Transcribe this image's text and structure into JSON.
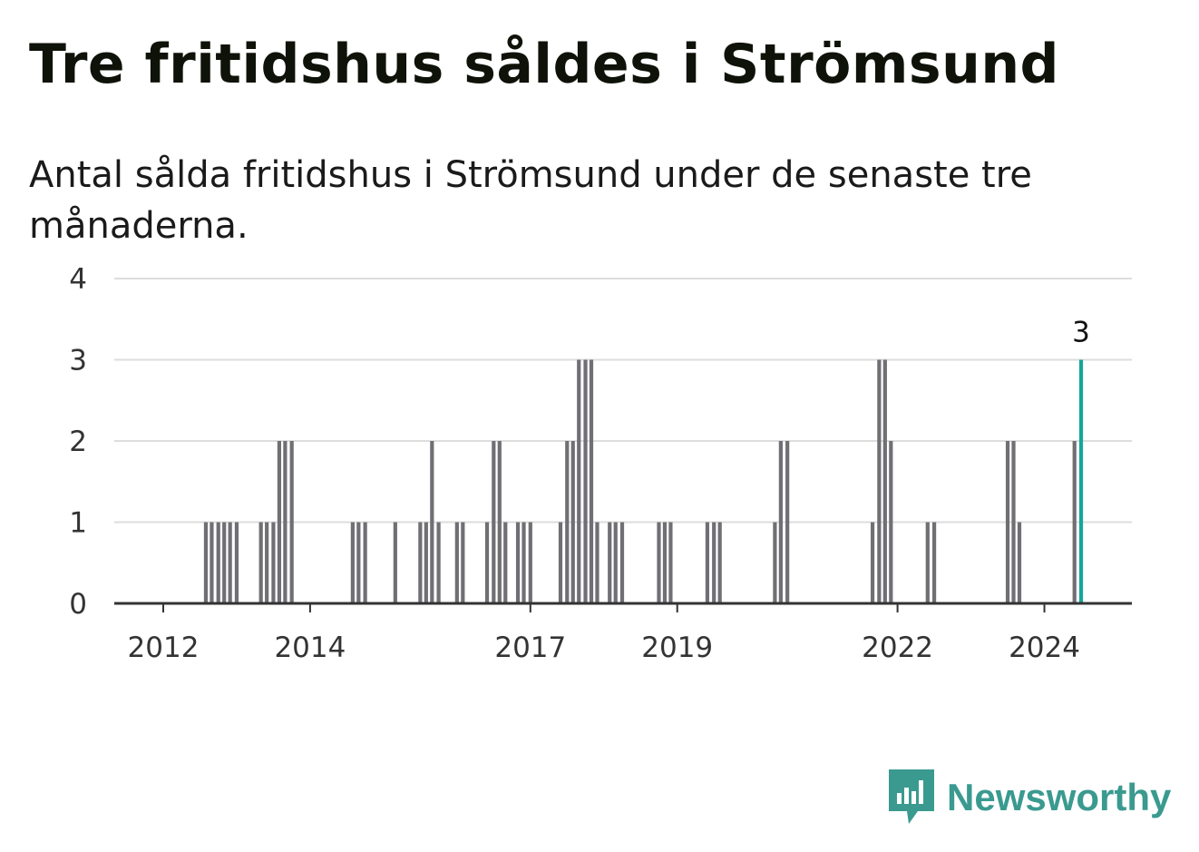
{
  "title": "Tre fritidshus såldes i Strömsund",
  "subtitle": "Antal sålda fritidshus i Strömsund under de senaste tre månaderna.",
  "brand": {
    "name": "Newsworthy",
    "icon": "newsworthy-logo-icon",
    "color": "#3a9a90"
  },
  "colors": {
    "bar": "#6f6f74",
    "highlight": "#17a59a",
    "grid": "#dddddd",
    "axis": "#333333"
  },
  "chart_data": {
    "type": "bar",
    "title": "Tre fritidshus såldes i Strömsund",
    "xlabel": "",
    "ylabel": "",
    "ylim": [
      0,
      4
    ],
    "yticks": [
      0,
      1,
      2,
      3,
      4
    ],
    "xticks": [
      2012,
      2014,
      2017,
      2019,
      2022,
      2024
    ],
    "grid": true,
    "x": [
      2012.58,
      2012.66,
      2012.75,
      2012.83,
      2012.91,
      2013.0,
      2013.33,
      2013.41,
      2013.5,
      2013.58,
      2013.66,
      2013.75,
      2014.58,
      2014.66,
      2014.75,
      2015.16,
      2015.5,
      2015.58,
      2015.66,
      2015.75,
      2016.0,
      2016.08,
      2016.41,
      2016.5,
      2016.58,
      2016.66,
      2016.83,
      2016.91,
      2017.0,
      2017.41,
      2017.5,
      2017.58,
      2017.66,
      2017.75,
      2017.83,
      2017.91,
      2018.08,
      2018.16,
      2018.25,
      2018.75,
      2018.83,
      2018.91,
      2019.41,
      2019.5,
      2019.58,
      2020.33,
      2020.41,
      2020.5,
      2021.66,
      2021.75,
      2021.83,
      2021.91,
      2022.41,
      2022.5,
      2023.5,
      2023.58,
      2023.66,
      2024.41,
      2024.5
    ],
    "values": [
      1,
      1,
      1,
      1,
      1,
      1,
      1,
      1,
      1,
      2,
      2,
      2,
      1,
      1,
      1,
      1,
      1,
      1,
      2,
      1,
      1,
      1,
      1,
      2,
      2,
      1,
      1,
      1,
      1,
      1,
      2,
      2,
      3,
      3,
      3,
      1,
      1,
      1,
      1,
      1,
      1,
      1,
      1,
      1,
      1,
      1,
      2,
      2,
      1,
      3,
      3,
      2,
      1,
      1,
      2,
      2,
      1,
      2,
      3
    ],
    "highlight_index": 58,
    "data_labels": [
      {
        "index": 58,
        "text": "3"
      }
    ]
  }
}
